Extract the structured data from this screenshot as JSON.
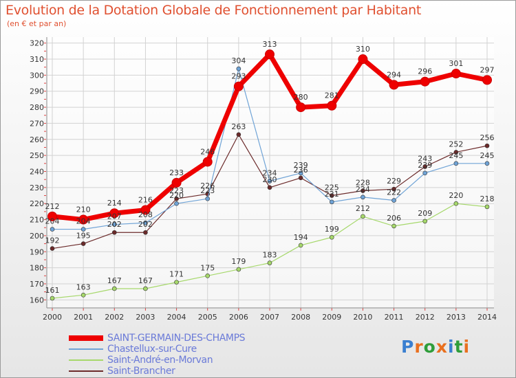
{
  "title": "Evolution de la Dotation Globale de Fonctionnement par Habitant",
  "subtitle": "(en € et par an)",
  "logo_text": "Proxiti",
  "chart_data": {
    "type": "line",
    "title": "Evolution de la Dotation Globale de Fonctionnement par Habitant",
    "subtitle": "(en € et par an)",
    "x": [
      "2000",
      "2001",
      "2002",
      "2003",
      "2004",
      "2005",
      "2006",
      "2007",
      "2008",
      "2009",
      "2010",
      "2011",
      "2012",
      "2013",
      "2014"
    ],
    "ylim": [
      155,
      322
    ],
    "yticks": [
      160,
      170,
      180,
      190,
      200,
      210,
      220,
      230,
      240,
      250,
      260,
      270,
      280,
      290,
      300,
      310,
      320
    ],
    "grid": true,
    "legend_position": "bottom-left",
    "series": [
      {
        "name": "SAINT-GERMAIN-DES-CHAMPS",
        "color": "#ee0000",
        "values": [
          212,
          210,
          214,
          216,
          233,
          246,
          293,
          313,
          280,
          281,
          310,
          294,
          296,
          301,
          297
        ]
      },
      {
        "name": "Chastellux-sur-Cure",
        "color": "#6fa3d6",
        "values": [
          204,
          204,
          207,
          208,
          220,
          223,
          304,
          234,
          239,
          221,
          224,
          222,
          239,
          245,
          245
        ]
      },
      {
        "name": "Saint-André-en-Morvan",
        "color": "#a6d86b",
        "values": [
          161,
          163,
          167,
          167,
          171,
          175,
          179,
          183,
          194,
          199,
          212,
          206,
          209,
          220,
          218
        ]
      },
      {
        "name": "Saint-Brancher",
        "color": "#6b2a2a",
        "values": [
          192,
          195,
          202,
          202,
          223,
          226,
          263,
          230,
          236,
          225,
          228,
          229,
          243,
          252,
          256
        ]
      }
    ]
  }
}
